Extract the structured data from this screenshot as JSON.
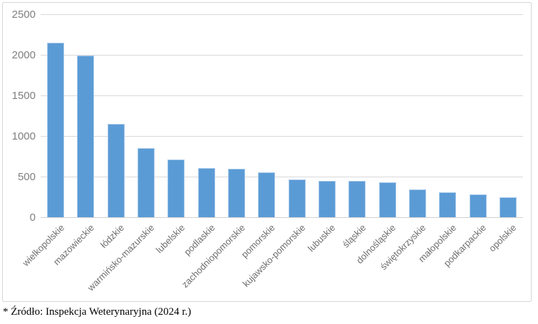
{
  "chart_data": {
    "type": "bar",
    "title": "",
    "xlabel": "",
    "ylabel": "",
    "categories": [
      "wielkopolskie",
      "mazowieckie",
      "łódzkie",
      "warmińsko-mazurskie",
      "lubelskie",
      "podlaskie",
      "zachodniopomorskie",
      "pomorskie",
      "kujawsko-pomorskie",
      "lubuskie",
      "śląskie",
      "dolnośląskie",
      "świętokrzyskie",
      "małopolskie",
      "podkarpackie",
      "opolskie"
    ],
    "values": [
      2150,
      1990,
      1150,
      855,
      715,
      605,
      595,
      555,
      465,
      445,
      445,
      430,
      340,
      310,
      285,
      250
    ],
    "ylim": [
      0,
      2500
    ],
    "yticks": [
      0,
      500,
      1000,
      1500,
      2000,
      2500
    ],
    "grid": true,
    "legend": "none",
    "colors": {
      "bar_fill": "#5B9BD5",
      "bar_edge": "#A9CBEC",
      "gridline": "#D9D9D9",
      "tick_label": "#7F7F7F",
      "category_label": "#6E6E6E",
      "chart_border": "#D7D7D7"
    }
  },
  "footer": {
    "source_note": "* Źródło: Inspekcja Weterynaryjna (2024 r.)"
  }
}
